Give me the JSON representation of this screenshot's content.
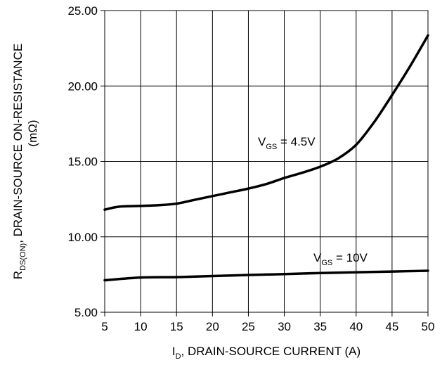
{
  "chart_data": {
    "type": "line",
    "xlabel": {
      "main": "I",
      "sub": "D",
      "rest": ", DRAIN-SOURCE CURRENT (A)"
    },
    "ylabel": {
      "main": "R",
      "sub": "DS(ON)",
      "rest": ", DRAIN-SOURCE ON-RESISTANCE",
      "line2": "(mΩ)"
    },
    "xlim": [
      5,
      50
    ],
    "ylim": [
      5,
      25
    ],
    "x_ticks": [
      "5",
      "10",
      "15",
      "20",
      "25",
      "30",
      "35",
      "40",
      "45",
      "50"
    ],
    "y_ticks": [
      "5.00",
      "10.00",
      "15.00",
      "20.00",
      "25.00"
    ],
    "grid": true,
    "series": [
      {
        "name": {
          "main": "V",
          "sub": "GS",
          "rest": " = 4.5V"
        },
        "x": [
          5,
          7,
          10,
          12.5,
          15,
          17.5,
          20,
          22.5,
          25,
          27.5,
          30,
          32.5,
          35,
          37.5,
          40,
          42.5,
          45,
          47.5,
          50
        ],
        "y": [
          11.8,
          12.0,
          12.05,
          12.1,
          12.2,
          12.45,
          12.7,
          12.95,
          13.2,
          13.5,
          13.9,
          14.25,
          14.65,
          15.2,
          16.1,
          17.6,
          19.4,
          21.3,
          23.35
        ]
      },
      {
        "name": {
          "main": "V",
          "sub": "GS",
          "rest": " = 10V"
        },
        "x": [
          5,
          10,
          15,
          20,
          25,
          30,
          35,
          40,
          45,
          50
        ],
        "y": [
          7.12,
          7.3,
          7.33,
          7.4,
          7.47,
          7.53,
          7.6,
          7.65,
          7.7,
          7.75
        ]
      }
    ]
  }
}
